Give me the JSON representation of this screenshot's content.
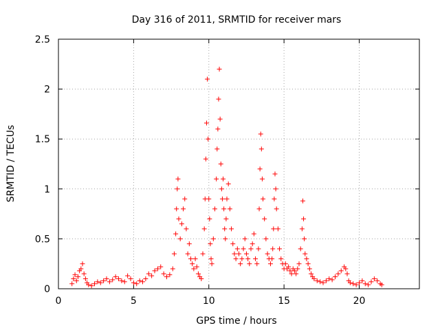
{
  "chart_data": {
    "type": "scatter",
    "title": "Day 316 of 2011, SRMTID for receiver mars",
    "xlabel": "GPS time / hours",
    "ylabel": "SRMTID / TECUs",
    "xlim": [
      0,
      24
    ],
    "ylim": [
      0,
      2.5
    ],
    "xticks": [
      0,
      5,
      10,
      15,
      20
    ],
    "xtick_labels": [
      "0",
      "5",
      "10",
      "15",
      "20"
    ],
    "yticks": [
      0,
      0.5,
      1,
      1.5,
      2,
      2.5
    ],
    "ytick_labels": [
      "0",
      "0.5",
      "1",
      "1.5",
      "2",
      "2.5"
    ],
    "grid": true,
    "marker": "+",
    "color": "#ff0000",
    "series": [
      {
        "name": "SRMTID",
        "x": [
          0.9,
          1.0,
          1.1,
          1.2,
          1.3,
          1.4,
          1.5,
          1.6,
          1.7,
          1.8,
          1.9,
          2.0,
          2.2,
          2.4,
          2.6,
          2.8,
          3.0,
          3.2,
          3.4,
          3.6,
          3.8,
          4.0,
          4.2,
          4.4,
          4.6,
          4.8,
          5.0,
          5.2,
          5.4,
          5.6,
          5.8,
          6.0,
          6.2,
          6.4,
          6.6,
          6.8,
          7.0,
          7.2,
          7.4,
          7.6,
          7.7,
          7.8,
          7.85,
          7.9,
          7.95,
          8.0,
          8.1,
          8.2,
          8.3,
          8.4,
          8.5,
          8.6,
          8.7,
          8.8,
          8.9,
          9.0,
          9.1,
          9.2,
          9.3,
          9.4,
          9.5,
          9.6,
          9.7,
          9.75,
          9.8,
          9.85,
          9.9,
          9.95,
          10.0,
          10.05,
          10.1,
          10.15,
          10.2,
          10.3,
          10.4,
          10.5,
          10.55,
          10.6,
          10.65,
          10.7,
          10.75,
          10.8,
          10.85,
          10.9,
          10.95,
          11.0,
          11.05,
          11.1,
          11.15,
          11.2,
          11.3,
          11.4,
          11.5,
          11.6,
          11.7,
          11.8,
          11.9,
          12.0,
          12.1,
          12.2,
          12.3,
          12.4,
          12.5,
          12.6,
          12.7,
          12.8,
          12.9,
          13.0,
          13.1,
          13.2,
          13.3,
          13.35,
          13.4,
          13.45,
          13.5,
          13.55,
          13.6,
          13.7,
          13.8,
          13.9,
          14.0,
          14.1,
          14.2,
          14.25,
          14.3,
          14.35,
          14.4,
          14.45,
          14.5,
          14.6,
          14.7,
          14.8,
          14.9,
          15.0,
          15.1,
          15.2,
          15.3,
          15.4,
          15.5,
          15.6,
          15.7,
          15.8,
          15.9,
          16.0,
          16.1,
          16.2,
          16.25,
          16.3,
          16.35,
          16.4,
          16.5,
          16.6,
          16.7,
          16.8,
          16.9,
          17.0,
          17.2,
          17.4,
          17.6,
          17.8,
          18.0,
          18.2,
          18.4,
          18.6,
          18.8,
          19.0,
          19.1,
          19.2,
          19.3,
          19.4,
          19.6,
          19.8,
          20.0,
          20.2,
          20.4,
          20.6,
          20.8,
          21.0,
          21.2,
          21.4,
          21.5
        ],
        "y": [
          0.05,
          0.1,
          0.14,
          0.08,
          0.12,
          0.18,
          0.2,
          0.25,
          0.15,
          0.1,
          0.06,
          0.04,
          0.03,
          0.05,
          0.07,
          0.06,
          0.08,
          0.1,
          0.07,
          0.09,
          0.12,
          0.1,
          0.08,
          0.07,
          0.13,
          0.1,
          0.06,
          0.05,
          0.08,
          0.07,
          0.1,
          0.15,
          0.13,
          0.18,
          0.2,
          0.22,
          0.15,
          0.12,
          0.14,
          0.2,
          0.35,
          0.55,
          0.8,
          1.0,
          1.1,
          0.7,
          0.5,
          0.65,
          0.8,
          0.9,
          0.6,
          0.35,
          0.45,
          0.3,
          0.25,
          0.2,
          0.3,
          0.22,
          0.15,
          0.12,
          0.1,
          0.35,
          0.6,
          0.9,
          1.3,
          1.66,
          2.1,
          1.5,
          0.9,
          0.7,
          0.45,
          0.3,
          0.25,
          0.5,
          0.8,
          1.1,
          1.4,
          1.6,
          1.9,
          2.2,
          1.7,
          1.25,
          1.0,
          0.9,
          1.1,
          0.8,
          0.6,
          0.5,
          0.7,
          0.9,
          1.05,
          0.8,
          0.6,
          0.45,
          0.35,
          0.3,
          0.4,
          0.35,
          0.25,
          0.3,
          0.4,
          0.5,
          0.35,
          0.3,
          0.25,
          0.4,
          0.45,
          0.55,
          0.3,
          0.25,
          0.4,
          0.8,
          1.2,
          1.55,
          1.4,
          1.1,
          0.9,
          0.7,
          0.5,
          0.35,
          0.3,
          0.25,
          0.3,
          0.4,
          0.6,
          0.9,
          1.15,
          1.0,
          0.8,
          0.6,
          0.4,
          0.3,
          0.25,
          0.2,
          0.25,
          0.2,
          0.22,
          0.18,
          0.15,
          0.2,
          0.18,
          0.15,
          0.2,
          0.25,
          0.4,
          0.6,
          0.88,
          0.7,
          0.5,
          0.35,
          0.3,
          0.25,
          0.2,
          0.15,
          0.12,
          0.1,
          0.08,
          0.07,
          0.06,
          0.08,
          0.1,
          0.09,
          0.12,
          0.15,
          0.18,
          0.22,
          0.2,
          0.15,
          0.08,
          0.06,
          0.05,
          0.04,
          0.06,
          0.08,
          0.05,
          0.04,
          0.07,
          0.1,
          0.08,
          0.05,
          0.04
        ]
      }
    ]
  }
}
